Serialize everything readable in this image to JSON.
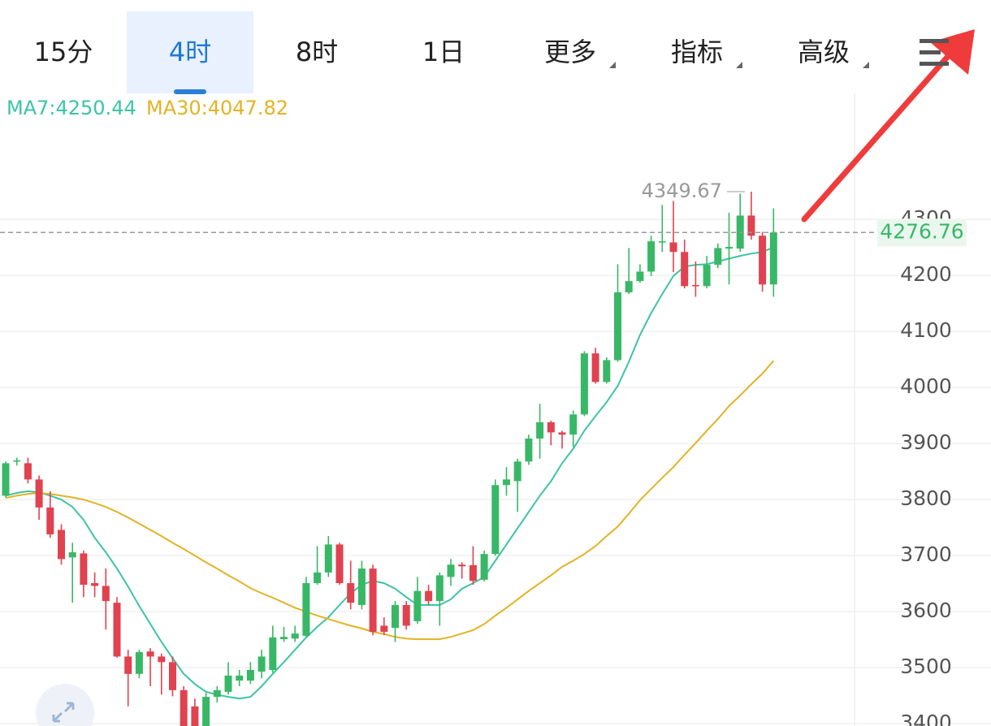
{
  "tabs": [
    {
      "label": "15分",
      "dropdown": false
    },
    {
      "label": "4时",
      "dropdown": false
    },
    {
      "label": "8时",
      "dropdown": false
    },
    {
      "label": "1日",
      "dropdown": false
    },
    {
      "label": "更多",
      "dropdown": true
    },
    {
      "label": "指标",
      "dropdown": true
    },
    {
      "label": "高级",
      "dropdown": true
    }
  ],
  "active_tab": 1,
  "chart_data": {
    "type": "candlestick",
    "up_color": "#38b866",
    "down_color": "#e0424f",
    "open": [
      3807,
      3868,
      3865,
      3836,
      3786,
      3746,
      3697,
      3704,
      3651,
      3646,
      3616,
      3520,
      3489,
      3529,
      3520,
      3510,
      3460,
      3431,
      3387,
      3448,
      3457,
      3477,
      3477,
      3493,
      3496,
      3551,
      3552,
      3557,
      3651,
      3670,
      3720,
      3651,
      3612,
      3677,
      3575,
      3571,
      3612,
      3583,
      3637,
      3619,
      3662,
      3684,
      3683,
      3657,
      3703,
      3826,
      3833,
      3868,
      3909,
      3938,
      3920,
      3916,
      3952,
      4061,
      4010,
      4049,
      4170,
      4190,
      4207,
      4259,
      4259,
      4242,
      4183,
      4181,
      4219,
      4248,
      4248,
      4307,
      4271,
      4184
    ],
    "high": [
      3868,
      3875,
      3875,
      3843,
      3815,
      3756,
      3723,
      3709,
      3670,
      3677,
      3626,
      3532,
      3532,
      3535,
      3525,
      3520,
      3467,
      3445,
      3455,
      3467,
      3510,
      3496,
      3510,
      3532,
      3575,
      3573,
      3575,
      3662,
      3717,
      3735,
      3723,
      3691,
      3691,
      3684,
      3590,
      3619,
      3619,
      3662,
      3648,
      3670,
      3694,
      3688,
      3717,
      3709,
      3836,
      3858,
      3873,
      3916,
      3971,
      3941,
      3923,
      3959,
      4065,
      4071,
      4054,
      4220,
      4249,
      4220,
      4271,
      4326,
      4333,
      4264,
      4225,
      4235,
      4257,
      4312,
      4346,
      4349.67,
      4278,
      4320
    ],
    "low": [
      3804,
      3861,
      3829,
      3764,
      3732,
      3684,
      3616,
      3626,
      3626,
      3568,
      3518,
      3431,
      3481,
      3467,
      3452,
      3449,
      3380,
      3373,
      3380,
      3438,
      3452,
      3467,
      3471,
      3481,
      3491,
      3546,
      3546,
      3554,
      3648,
      3662,
      3648,
      3604,
      3604,
      3558,
      3558,
      3546,
      3568,
      3578,
      3612,
      3575,
      3646,
      3659,
      3648,
      3654,
      3700,
      3807,
      3778,
      3862,
      3873,
      3897,
      3891,
      3894,
      3949,
      4007,
      4007,
      4046,
      4167,
      4187,
      4199,
      4242,
      4206,
      4177,
      4162,
      4177,
      4213,
      4184,
      4242,
      4264,
      4171,
      4162
    ],
    "close": [
      3865,
      3870,
      3836,
      3786,
      3738,
      3694,
      3706,
      3648,
      3646,
      3619,
      3520,
      3489,
      3528,
      3520,
      3510,
      3460,
      3396,
      3387,
      3448,
      3460,
      3486,
      3486,
      3496,
      3520,
      3554,
      3555,
      3561,
      3651,
      3670,
      3720,
      3651,
      3616,
      3677,
      3564,
      3564,
      3612,
      3575,
      3637,
      3619,
      3665,
      3684,
      3681,
      3655,
      3703,
      3826,
      3836,
      3868,
      3909,
      3938,
      3920,
      3916,
      3952,
      4061,
      4010,
      4049,
      4170,
      4190,
      4207,
      4261,
      4261,
      4242,
      4181,
      4181,
      4219,
      4249,
      4251,
      4307,
      4271,
      4184,
      4276.76
    ],
    "ma_series": [
      {
        "name": "MA7",
        "label": "MA7:4250.44",
        "color": "#3cc4a6",
        "values": [
          3807,
          3812,
          3815,
          3813,
          3807,
          3800,
          3787,
          3764,
          3732,
          3706,
          3677,
          3645,
          3610,
          3578,
          3546,
          3517,
          3489,
          3471,
          3457,
          3452,
          3448,
          3445,
          3448,
          3467,
          3489,
          3510,
          3532,
          3554,
          3573,
          3590,
          3612,
          3633,
          3648,
          3655,
          3651,
          3641,
          3626,
          3612,
          3612,
          3612,
          3622,
          3641,
          3651,
          3662,
          3691,
          3720,
          3749,
          3778,
          3807,
          3833,
          3865,
          3891,
          3923,
          3949,
          3974,
          4003,
          4046,
          4094,
          4133,
          4167,
          4199,
          4216,
          4219,
          4220,
          4225,
          4230,
          4235,
          4239,
          4242,
          4250.44
        ]
      },
      {
        "name": "MA30",
        "label": "MA30:4047.82",
        "color": "#e3b324",
        "values": [
          3803,
          3807,
          3810,
          3812,
          3810,
          3807,
          3804,
          3800,
          3794,
          3787,
          3778,
          3768,
          3757,
          3746,
          3735,
          3723,
          3712,
          3700,
          3688,
          3677,
          3665,
          3654,
          3642,
          3633,
          3625,
          3616,
          3607,
          3600,
          3593,
          3587,
          3581,
          3575,
          3570,
          3564,
          3560,
          3555,
          3552,
          3551,
          3551,
          3551,
          3555,
          3561,
          3567,
          3578,
          3593,
          3607,
          3622,
          3637,
          3651,
          3665,
          3680,
          3691,
          3703,
          3717,
          3735,
          3752,
          3775,
          3799,
          3819,
          3839,
          3858,
          3880,
          3901,
          3923,
          3944,
          3967,
          3986,
          4006,
          4025,
          4047.82
        ]
      }
    ],
    "ylim": [
      3396,
      4525
    ],
    "yticks": [
      3400,
      3500,
      3600,
      3700,
      3800,
      3900,
      4000,
      4100,
      4200,
      4300
    ],
    "grid": true
  }
}
